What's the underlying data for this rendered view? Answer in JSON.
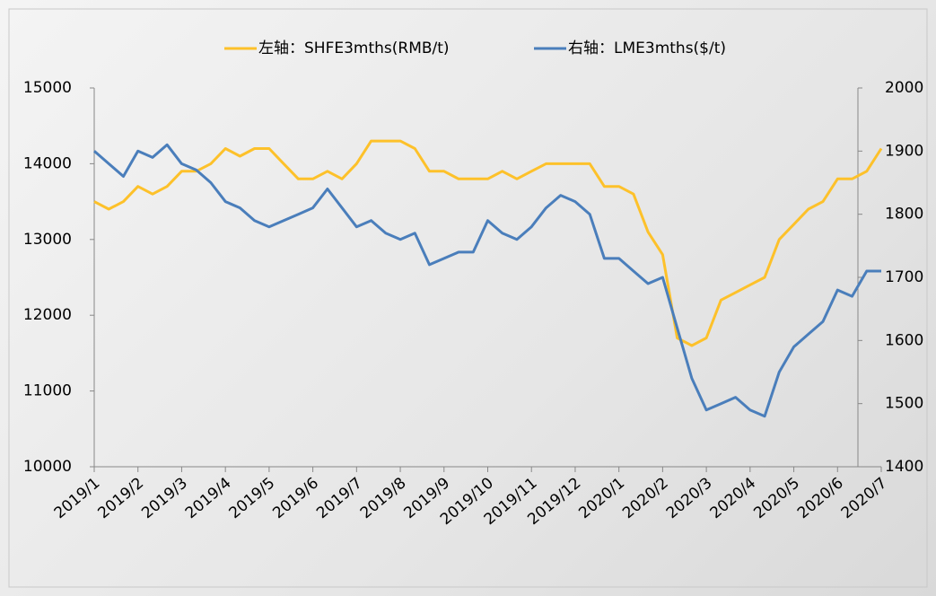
{
  "chart_data": {
    "type": "line",
    "categories": [
      "2019/1",
      null,
      null,
      "2019/2",
      null,
      null,
      "2019/3",
      null,
      null,
      "2019/4",
      null,
      null,
      "2019/5",
      null,
      null,
      "2019/6",
      null,
      null,
      "2019/7",
      null,
      null,
      "2019/8",
      null,
      null,
      "2019/9",
      null,
      null,
      "2019/10",
      null,
      null,
      "2019/11",
      null,
      null,
      "2019/12",
      null,
      null,
      "2020/1",
      null,
      null,
      "2020/2",
      null,
      null,
      "2020/3",
      null,
      null,
      "2020/4",
      null,
      null,
      "2020/5",
      null,
      null,
      "2020/6",
      null,
      null,
      "2020/7"
    ],
    "series": [
      {
        "name": "左轴：SHFE3mths(RMB/t)",
        "color": "#fdc12a",
        "values": [
          13500,
          13400,
          13500,
          13700,
          13600,
          13700,
          13900,
          13900,
          14000,
          14200,
          14100,
          14200,
          14200,
          14000,
          13800,
          13800,
          13900,
          13800,
          14000,
          14300,
          14300,
          14300,
          14200,
          13900,
          13900,
          13800,
          13800,
          13800,
          13900,
          13800,
          13900,
          14000,
          14000,
          14000,
          14000,
          13700,
          13700,
          13600,
          13100,
          12800,
          11700,
          11600,
          11700,
          12200,
          12300,
          12400,
          12500,
          13000,
          13200,
          13400,
          13500,
          13800,
          13800,
          13900,
          14200
        ]
      },
      {
        "name": "右轴：LME3mths($/t)",
        "color": "#4a7ebb",
        "axis": "y2",
        "values": [
          1900,
          1880,
          1860,
          1900,
          1890,
          1910,
          1880,
          1870,
          1850,
          1820,
          1810,
          1790,
          1780,
          1790,
          1800,
          1810,
          1840,
          1810,
          1780,
          1790,
          1770,
          1760,
          1770,
          1720,
          1730,
          1740,
          1740,
          1790,
          1770,
          1760,
          1780,
          1810,
          1830,
          1820,
          1800,
          1730,
          1730,
          1710,
          1690,
          1700,
          1620,
          1540,
          1490,
          1500,
          1510,
          1490,
          1480,
          1550,
          1590,
          1610,
          1630,
          1680,
          1670,
          1710,
          1710
        ]
      }
    ],
    "ylim": [
      10000,
      15000
    ],
    "yticks": [
      10000,
      11000,
      12000,
      13000,
      14000,
      15000
    ],
    "y2lim": [
      1400,
      2000
    ],
    "y2ticks": [
      1400,
      1500,
      1600,
      1700,
      1800,
      1900,
      2000
    ],
    "grid": false,
    "legend": "top"
  }
}
